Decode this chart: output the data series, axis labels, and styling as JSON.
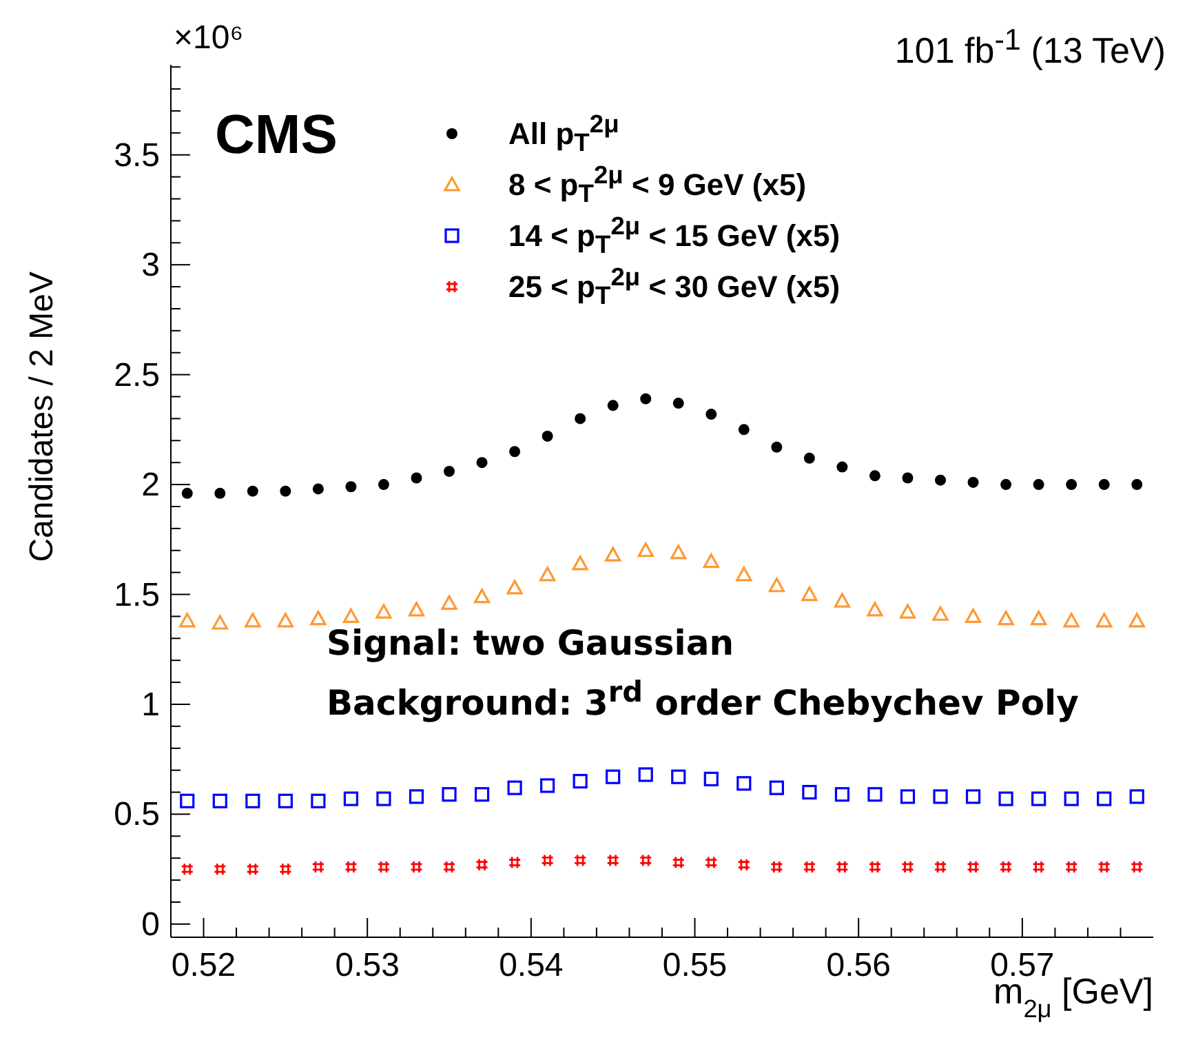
{
  "chart_data": {
    "type": "scatter",
    "xlabel": "m$_{2μ}$ [GeV]",
    "ylabel": "Candidates / 2 MeV",
    "annotations": [
      "CMS",
      "×10⁶",
      "101 fb$^{-1}$ (13 TeV)",
      "Signal: two Gaussian",
      "Background: 3$^{rd}$ order Chebychev Poly"
    ],
    "x": [
      0.519,
      0.521,
      0.523,
      0.525,
      0.527,
      0.529,
      0.531,
      0.533,
      0.535,
      0.537,
      0.539,
      0.541,
      0.543,
      0.545,
      0.547,
      0.549,
      0.551,
      0.553,
      0.555,
      0.557,
      0.559,
      0.561,
      0.563,
      0.565,
      0.567,
      0.569,
      0.571,
      0.573,
      0.575,
      0.577
    ],
    "series": [
      {
        "name": "All p$_{T}$$^{2μ}$",
        "color": "#000000",
        "marker": "circle",
        "values": [
          1.96,
          1.96,
          1.97,
          1.97,
          1.98,
          1.99,
          2.0,
          2.03,
          2.06,
          2.1,
          2.15,
          2.22,
          2.3,
          2.36,
          2.39,
          2.37,
          2.32,
          2.25,
          2.17,
          2.12,
          2.08,
          2.04,
          2.03,
          2.02,
          2.01,
          2.0,
          2.0,
          2.0,
          2.0,
          2.0
        ]
      },
      {
        "name": "8 < p$_{T}$$^{2μ}$ < 9 GeV (x5)",
        "color": "#ff9933",
        "marker": "triangle",
        "values": [
          1.38,
          1.37,
          1.38,
          1.38,
          1.39,
          1.4,
          1.42,
          1.43,
          1.46,
          1.49,
          1.53,
          1.59,
          1.64,
          1.68,
          1.7,
          1.69,
          1.65,
          1.59,
          1.54,
          1.5,
          1.47,
          1.43,
          1.42,
          1.41,
          1.4,
          1.39,
          1.39,
          1.38,
          1.38,
          1.38
        ]
      },
      {
        "name": "14 < p$_{T}$$^{2μ}$ < 15 GeV (x5)",
        "color": "#0000ff",
        "marker": "square",
        "values": [
          0.56,
          0.56,
          0.56,
          0.56,
          0.56,
          0.57,
          0.57,
          0.58,
          0.59,
          0.59,
          0.62,
          0.63,
          0.65,
          0.67,
          0.68,
          0.67,
          0.66,
          0.64,
          0.62,
          0.6,
          0.59,
          0.59,
          0.58,
          0.58,
          0.58,
          0.57,
          0.57,
          0.57,
          0.57,
          0.58
        ]
      },
      {
        "name": "25 < p$_{T}$$^{2μ}$ < 30 GeV (x5)",
        "color": "#ff0000",
        "marker": "cross",
        "values": [
          0.25,
          0.25,
          0.25,
          0.25,
          0.26,
          0.26,
          0.26,
          0.26,
          0.26,
          0.27,
          0.28,
          0.29,
          0.29,
          0.29,
          0.29,
          0.28,
          0.28,
          0.27,
          0.26,
          0.26,
          0.26,
          0.26,
          0.26,
          0.26,
          0.26,
          0.26,
          0.26,
          0.26,
          0.26,
          0.26
        ]
      }
    ],
    "xlim": [
      0.518,
      0.578
    ],
    "xticks": [
      {
        "value": 0.518,
        "label": null
      },
      0.52,
      {
        "value": 0.522,
        "label": null
      },
      {
        "value": 0.524,
        "label": null
      },
      {
        "value": 0.526,
        "label": null
      },
      {
        "value": 0.528,
        "label": null
      },
      0.53,
      {
        "value": 0.532,
        "label": null
      },
      {
        "value": 0.534,
        "label": null
      },
      {
        "value": 0.536,
        "label": null
      },
      {
        "value": 0.538,
        "label": null
      },
      0.54,
      {
        "value": 0.542,
        "label": null
      },
      {
        "value": 0.544,
        "label": null
      },
      {
        "value": 0.546,
        "label": null
      },
      {
        "value": 0.548,
        "label": null
      },
      0.55,
      {
        "value": 0.552,
        "label": null
      },
      {
        "value": 0.554,
        "label": null
      },
      {
        "value": 0.556,
        "label": null
      },
      {
        "value": 0.558,
        "label": null
      },
      0.56,
      {
        "value": 0.562,
        "label": null
      },
      {
        "value": 0.564,
        "label": null
      },
      {
        "value": 0.566,
        "label": null
      },
      {
        "value": 0.568,
        "label": null
      },
      0.57,
      {
        "value": 0.572,
        "label": null
      },
      {
        "value": 0.574,
        "label": null
      },
      {
        "value": 0.576,
        "label": null
      }
    ],
    "ylim": [
      -0.06,
      3.91
    ],
    "yticks": [
      0,
      {
        "value": 0.1,
        "label": null
      },
      {
        "value": 0.2,
        "label": null
      },
      {
        "value": 0.3,
        "label": null
      },
      {
        "value": 0.4,
        "label": null
      },
      0.5,
      {
        "value": 0.6,
        "label": null
      },
      {
        "value": 0.7,
        "label": null
      },
      {
        "value": 0.8,
        "label": null
      },
      {
        "value": 0.9,
        "label": null
      },
      1,
      {
        "value": 1.1,
        "label": null
      },
      {
        "value": 1.2,
        "label": null
      },
      {
        "value": 1.3,
        "label": null
      },
      {
        "value": 1.4,
        "label": null
      },
      1.5,
      {
        "value": 1.6,
        "label": null
      },
      {
        "value": 1.7,
        "label": null
      },
      {
        "value": 1.8,
        "label": null
      },
      {
        "value": 1.9,
        "label": null
      },
      2,
      {
        "value": 2.1,
        "label": null
      },
      {
        "value": 2.2,
        "label": null
      },
      {
        "value": 2.3,
        "label": null
      },
      {
        "value": 2.4,
        "label": null
      },
      2.5,
      {
        "value": 2.6,
        "label": null
      },
      {
        "value": 2.7,
        "label": null
      },
      {
        "value": 2.8,
        "label": null
      },
      {
        "value": 2.9,
        "label": null
      },
      3,
      {
        "value": 3.1,
        "label": null
      },
      {
        "value": 3.2,
        "label": null
      },
      {
        "value": 3.3,
        "label": null
      },
      {
        "value": 3.4,
        "label": null
      },
      3.5,
      {
        "value": 3.6,
        "label": null
      },
      {
        "value": 3.7,
        "label": null
      },
      {
        "value": 3.8,
        "label": null
      },
      {
        "value": 3.9,
        "label": null
      }
    ],
    "legend": "top"
  }
}
